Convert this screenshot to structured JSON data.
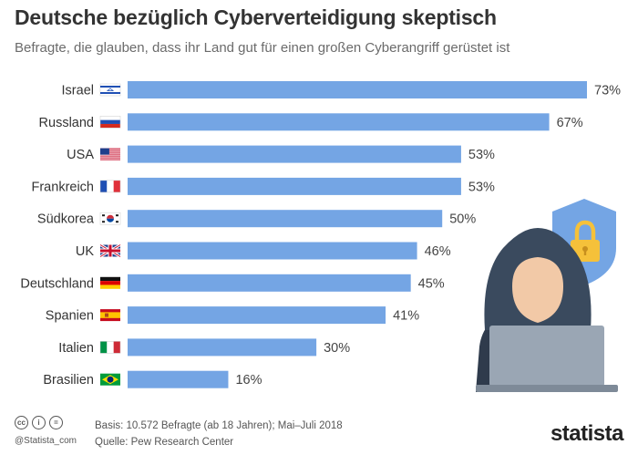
{
  "header": {
    "title": "Deutsche bezüglich Cyberverteidigung skeptisch",
    "subtitle": "Befragte, die glauben, dass ihr Land gut für einen großen Cyberangriff gerüstet ist"
  },
  "chart_data": {
    "type": "bar",
    "orientation": "horizontal",
    "categories": [
      "Israel",
      "Russland",
      "USA",
      "Frankreich",
      "Südkorea",
      "UK",
      "Deutschland",
      "Spanien",
      "Italien",
      "Brasilien"
    ],
    "values": [
      73,
      67,
      53,
      53,
      50,
      46,
      45,
      41,
      30,
      16
    ],
    "value_labels": [
      "73%",
      "67%",
      "53%",
      "53%",
      "50%",
      "46%",
      "45%",
      "41%",
      "30%",
      "16%"
    ],
    "flag_icons": [
      "israel-flag-icon",
      "russia-flag-icon",
      "usa-flag-icon",
      "france-flag-icon",
      "south-korea-flag-icon",
      "uk-flag-icon",
      "germany-flag-icon",
      "spain-flag-icon",
      "italy-flag-icon",
      "brazil-flag-icon"
    ],
    "xlim": [
      0,
      73
    ],
    "bar_color": "#74a5e4",
    "grid": false,
    "legend": "none"
  },
  "illustration": {
    "icon": "hacker-with-laptop-and-shield-lock-icon",
    "shield_color": "#74a5e4",
    "lock_color": "#f5c13a",
    "hood_color": "#3a4a5e",
    "laptop_color": "#9aa6b4"
  },
  "footer": {
    "license_icons": [
      "cc-icon",
      "attribution-icon",
      "equals-icon"
    ],
    "handle": "@Statista_com",
    "basis": "Basis: 10.572 Befragte (ab 18 Jahren); Mai–Juli 2018",
    "source": "Quelle: Pew Research Center",
    "brand": "statista"
  }
}
